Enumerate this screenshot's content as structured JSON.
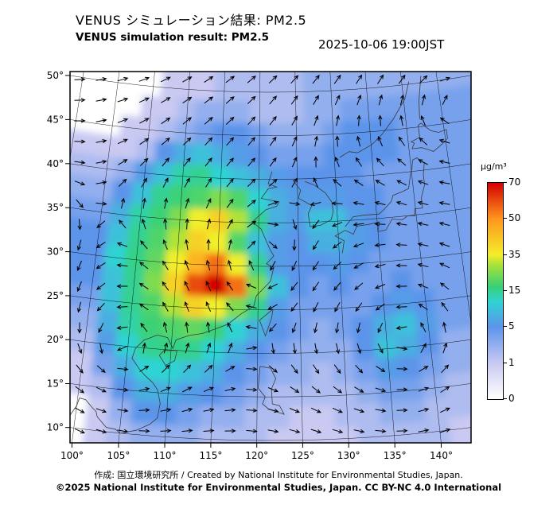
{
  "header": {
    "title_jp": "VENUS シミュレーション結果: PM2.5",
    "title_en": "VENUS simulation result: PM2.5",
    "timestamp": "2025-10-06 19:00JST"
  },
  "footer": {
    "credit": "作成: 国立環境研究所 / Created by National Institute for Environmental Studies, Japan.",
    "license": "©2025 National Institute for Environmental Studies, Japan. CC BY-NC 4.0 International"
  },
  "colorbar": {
    "unit": "µg/m³",
    "tick_labels": [
      "70",
      "50",
      "35",
      "15",
      "5",
      "1",
      "0"
    ]
  },
  "axes": {
    "lat_labels": [
      "50°",
      "45°",
      "40°",
      "35°",
      "30°",
      "25°",
      "20°",
      "15°",
      "10°"
    ],
    "lon_labels": [
      "100°",
      "105°",
      "110°",
      "115°",
      "120°",
      "125°",
      "130°",
      "135°",
      "140°"
    ]
  },
  "color_scale": {
    "tick_values": [
      0,
      1,
      5,
      15,
      35,
      50,
      70
    ],
    "stops": [
      {
        "f": 0.0,
        "c": "#ffffff"
      },
      {
        "f": 0.167,
        "c": "#c9c9f2"
      },
      {
        "f": 0.333,
        "c": "#5c94ea"
      },
      {
        "f": 0.45,
        "c": "#2fd3d3"
      },
      {
        "f": 0.52,
        "c": "#37d077"
      },
      {
        "f": 0.62,
        "c": "#a8e23a"
      },
      {
        "f": 0.667,
        "c": "#f2ee2a"
      },
      {
        "f": 0.833,
        "c": "#ff961e"
      },
      {
        "f": 1.0,
        "c": "#d40000"
      }
    ]
  },
  "chart_data": {
    "type": "heatmap",
    "title": "VENUS シミュレーション結果: PM2.5",
    "subtitle": "VENUS simulation result: PM2.5",
    "timestamp": "2025-10-06 19:00JST",
    "variable": "PM2.5",
    "unit": "µg/m³",
    "x": {
      "label": "longitude",
      "range_deg": [
        100,
        140
      ],
      "tick_step_deg": 5
    },
    "y": {
      "label": "latitude",
      "range_deg": [
        10,
        50
      ],
      "tick_step_deg": 5
    },
    "colorbar": {
      "unit": "µg/m³",
      "tick_values": [
        70,
        50,
        35,
        15,
        5,
        1,
        0
      ]
    },
    "grid": {
      "lon_start": 97.5,
      "lon_step": 2.5,
      "lat_start": 50.0,
      "lat_step": -2.5,
      "values": [
        [
          0,
          0,
          0,
          0,
          1,
          1,
          1,
          2,
          2,
          2,
          2,
          2,
          3,
          3,
          3,
          3,
          3,
          3,
          3,
          3
        ],
        [
          0,
          0,
          0,
          1,
          1,
          2,
          3,
          3,
          3,
          2,
          2,
          2,
          3,
          3,
          4,
          4,
          4,
          4,
          4,
          4
        ],
        [
          0,
          0,
          1,
          1,
          2,
          3,
          4,
          5,
          5,
          4,
          3,
          3,
          3,
          4,
          5,
          5,
          5,
          4,
          4,
          4
        ],
        [
          1,
          1,
          1,
          2,
          5,
          8,
          10,
          8,
          6,
          5,
          4,
          4,
          4,
          5,
          5,
          5,
          5,
          4,
          4,
          4
        ],
        [
          2,
          2,
          3,
          6,
          10,
          14,
          15,
          12,
          10,
          8,
          6,
          5,
          5,
          5,
          5,
          4,
          4,
          4,
          4,
          4
        ],
        [
          3,
          3,
          5,
          10,
          15,
          18,
          20,
          25,
          20,
          12,
          8,
          6,
          6,
          6,
          5,
          5,
          4,
          4,
          4,
          4
        ],
        [
          4,
          4,
          8,
          14,
          18,
          25,
          35,
          40,
          30,
          15,
          8,
          6,
          10,
          10,
          6,
          5,
          4,
          4,
          4,
          4
        ],
        [
          5,
          5,
          10,
          15,
          20,
          30,
          40,
          35,
          20,
          10,
          6,
          5,
          8,
          8,
          6,
          5,
          4,
          4,
          4,
          4
        ],
        [
          5,
          5,
          12,
          16,
          22,
          35,
          45,
          55,
          35,
          15,
          6,
          5,
          5,
          6,
          5,
          4,
          4,
          4,
          4,
          4
        ],
        [
          5,
          5,
          10,
          15,
          25,
          40,
          60,
          70,
          55,
          25,
          10,
          5,
          4,
          5,
          4,
          4,
          5,
          4,
          4,
          4
        ],
        [
          4,
          4,
          10,
          15,
          20,
          30,
          40,
          35,
          25,
          15,
          6,
          4,
          4,
          4,
          4,
          5,
          6,
          5,
          4,
          4
        ],
        [
          3,
          3,
          8,
          14,
          18,
          20,
          22,
          18,
          12,
          8,
          5,
          4,
          3,
          4,
          5,
          8,
          10,
          6,
          4,
          4
        ],
        [
          2,
          2,
          6,
          12,
          15,
          16,
          15,
          12,
          8,
          5,
          4,
          3,
          3,
          3,
          5,
          10,
          8,
          5,
          3,
          3
        ],
        [
          1,
          1,
          4,
          8,
          12,
          12,
          10,
          8,
          5,
          4,
          3,
          3,
          2,
          3,
          4,
          6,
          5,
          4,
          3,
          3
        ],
        [
          1,
          1,
          2,
          5,
          8,
          8,
          6,
          5,
          4,
          3,
          2,
          2,
          2,
          2,
          3,
          4,
          4,
          3,
          2,
          2
        ],
        [
          0,
          0,
          1,
          3,
          5,
          5,
          4,
          3,
          3,
          2,
          2,
          1,
          1,
          2,
          2,
          3,
          3,
          2,
          2,
          2
        ],
        [
          0,
          0,
          1,
          2,
          3,
          3,
          3,
          2,
          2,
          2,
          1,
          1,
          1,
          1,
          2,
          2,
          2,
          2,
          1,
          1
        ]
      ]
    },
    "wind_overlay": {
      "style": "arrows",
      "base_flow": {
        "dx": 0.55,
        "dy": 0.1
      },
      "vortices": [
        {
          "lon": 137.0,
          "lat": 21.0,
          "spin": "ccw",
          "strength": 1.3
        },
        {
          "lon": 104.5,
          "lat": 19.5,
          "spin": "ccw",
          "strength": 0.9
        },
        {
          "lon": 120.5,
          "lat": 30.5,
          "spin": "cw",
          "strength": 0.5
        },
        {
          "lon": 147.0,
          "lat": 47.0,
          "spin": "cw",
          "strength": 1.2
        }
      ]
    }
  }
}
